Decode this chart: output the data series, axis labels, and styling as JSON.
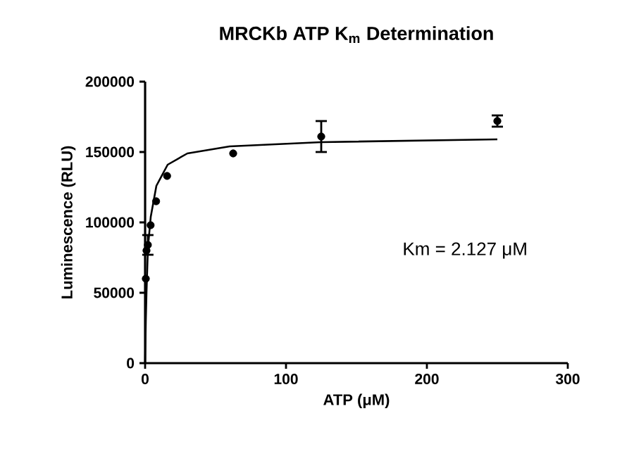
{
  "chart_data": {
    "type": "scatter",
    "title": "MRCKb ATP K$_{m}$ Determination",
    "xlabel": "ATP (μM)",
    "ylabel": "Luminescence (RLU)",
    "annotations": [
      "Km = 2.127 μM"
    ],
    "xlim": [
      0,
      300
    ],
    "ylim": [
      0,
      200000
    ],
    "xticks": [
      0,
      100,
      200,
      300
    ],
    "yticks": [
      0,
      50000,
      100000,
      150000,
      200000
    ],
    "series": [
      {
        "color": "#000000",
        "marker": "circle",
        "x": [
          0.49,
          0.98,
          1.95,
          3.9,
          7.8,
          15.6,
          62.5,
          125,
          250
        ],
        "values": [
          60000,
          80000,
          84000,
          98000,
          115000,
          133000,
          149000,
          161000,
          172000
        ],
        "errors": [
          null,
          null,
          7000,
          null,
          null,
          null,
          null,
          11000,
          4000
        ]
      },
      {
        "type": "line",
        "color": "#000000",
        "marker": "none",
        "x": [
          0,
          0.5,
          1,
          2,
          4,
          8,
          16,
          30,
          60,
          125,
          250
        ],
        "values": [
          0,
          30000,
          51000,
          82000,
          104000,
          126000,
          141000,
          149000,
          154000,
          157000,
          159000
        ]
      }
    ]
  }
}
